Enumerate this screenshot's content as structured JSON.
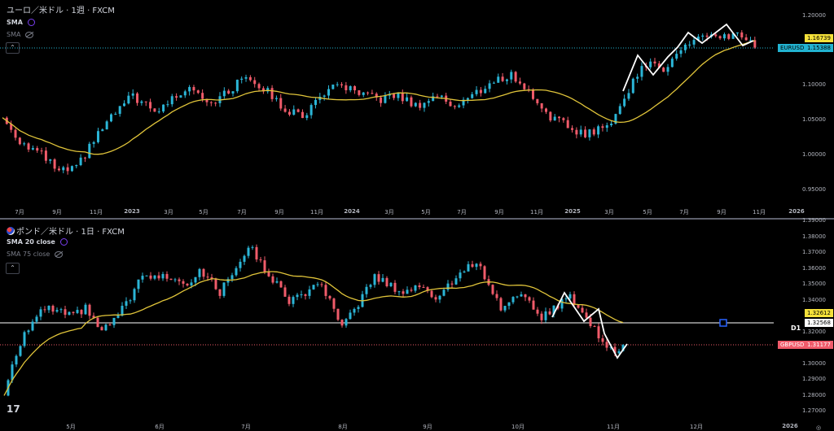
{
  "top": {
    "title": "ユーロ／米ドル · 1週 · FXCM",
    "indicators": [
      {
        "label": "SMA",
        "visible": true
      },
      {
        "label": "SMA",
        "visible": false
      }
    ],
    "symbol": "EURUSD",
    "price": "1.15388",
    "sma_value": "1.16739",
    "y_ticks": [
      "1.20000",
      "1.10000",
      "1.05000",
      "1.00000",
      "0.95000"
    ],
    "x_ticks": [
      "7月",
      "9月",
      "11月",
      "2023",
      "3月",
      "5月",
      "7月",
      "9月",
      "11月",
      "2024",
      "3月",
      "5月",
      "7月",
      "9月",
      "11月",
      "2025",
      "3月",
      "5月",
      "7月",
      "9月",
      "11月",
      "2026"
    ]
  },
  "bottom": {
    "title": "ポンド／米ドル · 1日 · FXCM",
    "indicators": [
      {
        "label": "SMA 20 close",
        "visible": true
      },
      {
        "label": "SMA 75 close",
        "visible": false
      }
    ],
    "symbol": "GBPUSD",
    "price": "1.31177",
    "sma_value": "1.32612",
    "line_value": "1.32568",
    "line_label": "D1",
    "y_ticks": [
      "1.39000",
      "1.38000",
      "1.37000",
      "1.36000",
      "1.35000",
      "1.34000",
      "1.32000",
      "1.30000",
      "1.29000",
      "1.28000",
      "1.27000"
    ],
    "x_ticks": [
      "5月",
      "6月",
      "7月",
      "8月",
      "9月",
      "10月",
      "11月",
      "12月",
      "2026"
    ]
  },
  "colors": {
    "up": "#2bb5d6",
    "down": "#f05b6a",
    "sma": "#e0c43a",
    "eur_tag": "#22b3d1",
    "gbp_tag": "#f05b6a"
  },
  "chart_data": [
    {
      "type": "candlestick",
      "symbol": "EURUSD",
      "timeframe": "1W",
      "ylim": [
        0.93,
        1.21
      ],
      "anchors_month_index_from_jun2022": [
        [
          0,
          1.053
        ],
        [
          1,
          1.02
        ],
        [
          2,
          1.0
        ],
        [
          3,
          0.975
        ],
        [
          4,
          0.98
        ],
        [
          5,
          1.03
        ],
        [
          6,
          1.06
        ],
        [
          7,
          1.085
        ],
        [
          8,
          1.06
        ],
        [
          9,
          1.08
        ],
        [
          10,
          1.1
        ],
        [
          11,
          1.075
        ],
        [
          12,
          1.09
        ],
        [
          13,
          1.115
        ],
        [
          14,
          1.09
        ],
        [
          15,
          1.065
        ],
        [
          16,
          1.055
        ],
        [
          17,
          1.09
        ],
        [
          18,
          1.1
        ],
        [
          19,
          1.085
        ],
        [
          20,
          1.08
        ],
        [
          21,
          1.085
        ],
        [
          22,
          1.07
        ],
        [
          23,
          1.085
        ],
        [
          24,
          1.07
        ],
        [
          25,
          1.085
        ],
        [
          26,
          1.105
        ],
        [
          27,
          1.115
        ],
        [
          28,
          1.09
        ],
        [
          29,
          1.055
        ],
        [
          30,
          1.04
        ],
        [
          31,
          1.03
        ],
        [
          32,
          1.04
        ],
        [
          33,
          1.08
        ],
        [
          34,
          1.13
        ],
        [
          35,
          1.125
        ],
        [
          36,
          1.15
        ],
        [
          37,
          1.17
        ],
        [
          38,
          1.165
        ],
        [
          39,
          1.175
        ],
        [
          40,
          1.154
        ]
      ]
    },
    {
      "type": "candlestick",
      "symbol": "GBPUSD",
      "timeframe": "1D",
      "ylim": [
        1.265,
        1.39
      ],
      "anchors_trading_day_from_apr8_2025": [
        [
          0,
          1.28
        ],
        [
          2,
          1.3
        ],
        [
          5,
          1.32
        ],
        [
          10,
          1.335
        ],
        [
          17,
          1.33
        ],
        [
          20,
          1.335
        ],
        [
          24,
          1.32
        ],
        [
          28,
          1.33
        ],
        [
          34,
          1.355
        ],
        [
          42,
          1.355
        ],
        [
          45,
          1.35
        ],
        [
          48,
          1.36
        ],
        [
          53,
          1.345
        ],
        [
          59,
          1.37
        ],
        [
          60,
          1.375
        ],
        [
          64,
          1.36
        ],
        [
          70,
          1.34
        ],
        [
          78,
          1.35
        ],
        [
          83,
          1.322
        ],
        [
          85,
          1.33
        ],
        [
          91,
          1.355
        ],
        [
          98,
          1.345
        ],
        [
          103,
          1.35
        ],
        [
          106,
          1.34
        ],
        [
          111,
          1.355
        ],
        [
          116,
          1.365
        ],
        [
          122,
          1.335
        ],
        [
          126,
          1.345
        ],
        [
          132,
          1.33
        ],
        [
          135,
          1.335
        ],
        [
          139,
          1.343
        ],
        [
          147,
          1.315
        ],
        [
          150,
          1.305
        ],
        [
          152,
          1.312
        ]
      ]
    }
  ]
}
